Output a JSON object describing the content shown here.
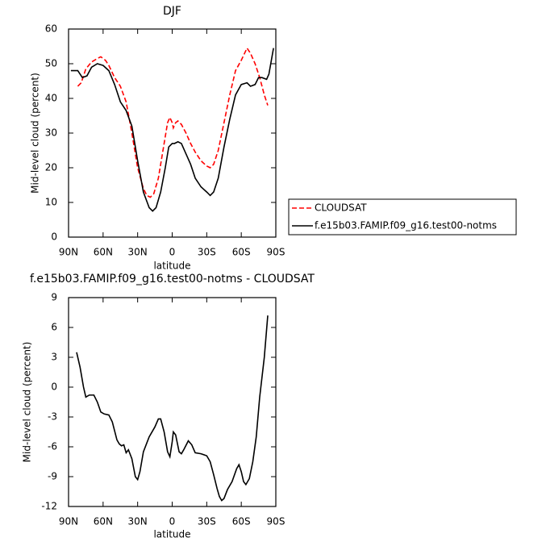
{
  "chart_data": [
    {
      "type": "line",
      "title": "DJF",
      "xlabel": "latitude",
      "ylabel": "Mid-level cloud (percent)",
      "xlim": [
        90,
        -90
      ],
      "xticks": [
        {
          "value": 90,
          "label": "90N"
        },
        {
          "value": 60,
          "label": "60N"
        },
        {
          "value": 30,
          "label": "30N"
        },
        0,
        {
          "value": -30,
          "label": "30S"
        },
        {
          "value": -60,
          "label": "60S"
        },
        {
          "value": -90,
          "label": "90S"
        }
      ],
      "ylim": [
        0,
        60
      ],
      "yticks": [
        0,
        10,
        20,
        30,
        40,
        50,
        60
      ],
      "legend": "right",
      "series": [
        {
          "name": "CLOUDSAT",
          "color": "#ff0000",
          "style": "dashed",
          "x": [
            82,
            79,
            75,
            70,
            65,
            62,
            58,
            55,
            50,
            45,
            40,
            35,
            30,
            25,
            22,
            19,
            16,
            12,
            8,
            4,
            2,
            0,
            -1,
            -3,
            -5,
            -8,
            -12,
            -16,
            -20,
            -25,
            -30,
            -33,
            -36,
            -40,
            -45,
            -50,
            -55,
            -60,
            -65,
            -68,
            -72,
            -76,
            -80,
            -83
          ],
          "values": [
            43.5,
            44.5,
            48.5,
            50.5,
            51.5,
            52,
            51,
            49.5,
            46,
            43.5,
            39,
            30,
            20,
            14,
            12,
            11.5,
            12.5,
            17,
            25,
            33,
            34.5,
            33,
            31.5,
            33,
            33.5,
            32.5,
            30,
            27,
            24.5,
            22,
            20.5,
            20,
            21,
            25,
            33,
            41,
            48,
            51,
            54.5,
            53,
            50,
            46,
            41,
            38
          ]
        },
        {
          "name": "f.e15b03.FAMIP.f09_g16.test00-notms",
          "color": "#000000",
          "style": "solid",
          "x": [
            88,
            82,
            78,
            74,
            70,
            65,
            60,
            55,
            50,
            45,
            40,
            35,
            30,
            25,
            20,
            17,
            14,
            10,
            6,
            3,
            0,
            -2,
            -5,
            -8,
            -12,
            -16,
            -20,
            -25,
            -30,
            -33,
            -36,
            -40,
            -45,
            -50,
            -55,
            -60,
            -65,
            -68,
            -72,
            -75,
            -78,
            -82,
            -84,
            -88
          ],
          "values": [
            48,
            48,
            46,
            46.5,
            49,
            50,
            49.5,
            48,
            44,
            39,
            36.5,
            32,
            22,
            13,
            8.5,
            7.5,
            8.5,
            13,
            20,
            26,
            27,
            27,
            27.5,
            27,
            24,
            21,
            17,
            14.5,
            13,
            12,
            13,
            17,
            26,
            34,
            41,
            44,
            44.5,
            43.5,
            44,
            46,
            46,
            45.5,
            47,
            54.5
          ]
        }
      ]
    },
    {
      "type": "line",
      "title": "f.e15b03.FAMIP.f09_g16.test00-notms - CLOUDSAT",
      "xlabel": "latitude",
      "ylabel": "Mid-level cloud (percent)",
      "xlim": [
        90,
        -90
      ],
      "xticks": [
        {
          "value": 90,
          "label": "90N"
        },
        {
          "value": 60,
          "label": "60N"
        },
        {
          "value": 30,
          "label": "30N"
        },
        0,
        {
          "value": -30,
          "label": "30S"
        },
        {
          "value": -60,
          "label": "60S"
        },
        {
          "value": -90,
          "label": "90S"
        }
      ],
      "ylim": [
        -12,
        9
      ],
      "yticks": [
        -12,
        -9,
        -6,
        -3,
        0,
        3,
        6,
        9
      ],
      "series": [
        {
          "color": "#000000",
          "style": "solid",
          "x": [
            83,
            80,
            77,
            75,
            72,
            68,
            65,
            62,
            59,
            55,
            52,
            48,
            46,
            44,
            42,
            40,
            38,
            35,
            32,
            30,
            28,
            25,
            20,
            15,
            12,
            10,
            7,
            4,
            2,
            0,
            -1,
            -3,
            -6,
            -8,
            -10,
            -14,
            -17,
            -20,
            -25,
            -30,
            -33,
            -36,
            -39,
            -41,
            -43,
            -45,
            -48,
            -52,
            -56,
            -58,
            -60,
            -62,
            -64,
            -67,
            -70,
            -73,
            -76,
            -80,
            -83
          ],
          "values": [
            3.5,
            2,
            0,
            -1,
            -0.8,
            -0.8,
            -1.5,
            -2.5,
            -2.7,
            -2.8,
            -3.5,
            -5.3,
            -5.7,
            -5.9,
            -5.8,
            -6.6,
            -6.3,
            -7.2,
            -9,
            -9.3,
            -8.5,
            -6.5,
            -5,
            -4,
            -3.2,
            -3.2,
            -4.5,
            -6.5,
            -7,
            -5.5,
            -4.5,
            -4.8,
            -6.5,
            -6.7,
            -6.3,
            -5.4,
            -5.8,
            -6.6,
            -6.7,
            -6.9,
            -7.5,
            -8.8,
            -10.2,
            -11,
            -11.4,
            -11.2,
            -10.3,
            -9.5,
            -8.2,
            -7.8,
            -8.5,
            -9.5,
            -9.8,
            -9.2,
            -7.5,
            -5,
            -1,
            3,
            7.2
          ]
        }
      ]
    }
  ]
}
